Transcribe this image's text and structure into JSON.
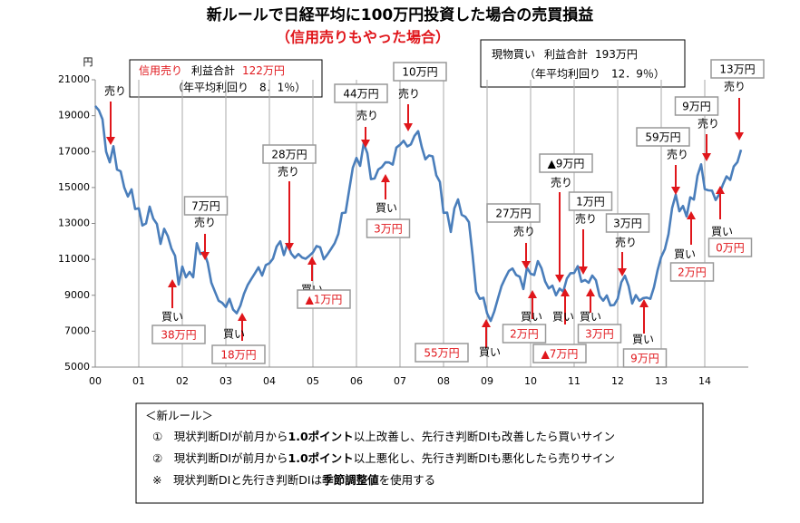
{
  "chart_data": {
    "type": "line",
    "title": "新ルールで日経平均に100万円投資した場合の売買損益",
    "subtitle": "（信用売りもやった場合）",
    "y_unit": "円",
    "x": [
      0,
      1,
      2,
      3,
      4,
      5,
      6,
      7,
      8,
      9,
      10,
      11,
      12,
      13,
      14,
      15,
      16,
      17,
      18,
      19,
      20,
      21,
      22,
      23,
      24,
      25,
      26,
      27,
      28,
      29,
      30,
      31,
      32,
      33,
      34,
      35,
      36,
      37,
      38,
      39,
      40,
      41,
      42,
      43,
      44,
      45,
      46,
      47,
      48,
      49,
      50,
      51,
      52,
      53,
      54,
      55,
      56,
      57,
      58,
      59,
      60,
      61,
      62,
      63,
      64,
      65,
      66,
      67,
      68,
      69,
      70,
      71,
      72,
      73,
      74,
      75,
      76,
      77,
      78,
      79,
      80,
      81,
      82,
      83,
      84,
      85,
      86,
      87,
      88,
      89,
      90,
      91,
      92,
      93,
      94,
      95,
      96,
      97,
      98,
      99,
      100,
      101,
      102,
      103,
      104,
      105,
      106,
      107,
      108,
      109,
      110,
      111,
      112,
      113,
      114,
      115,
      116,
      117,
      118,
      119,
      120,
      121,
      122,
      123,
      124,
      125,
      126,
      127,
      128,
      129,
      130,
      131,
      132,
      133,
      134,
      135,
      136,
      137,
      138,
      139,
      140,
      141,
      142,
      143,
      144,
      145,
      146,
      147,
      148,
      149,
      150,
      151,
      152,
      153,
      154,
      155,
      156,
      157,
      158,
      159,
      160,
      161,
      162,
      163,
      164,
      165,
      166,
      167,
      168,
      169,
      170,
      171,
      172,
      173,
      174,
      175,
      176,
      177,
      178
    ],
    "series": [
      {
        "name": "日経平均",
        "color": "#4a7ebb",
        "values": [
          19540,
          19300,
          18800,
          17000,
          16400,
          17300,
          16000,
          15900,
          15000,
          14500,
          14900,
          13800,
          13843,
          12883,
          12999,
          13934,
          13262,
          12969,
          11860,
          12700,
          12300,
          11600,
          11200,
          9600,
          10600,
          10000,
          10300,
          10000,
          11900,
          11300,
          11400,
          10800,
          9700,
          9200,
          8700,
          8578,
          8339,
          8800,
          8200,
          8000,
          8424,
          9083,
          9563,
          9900,
          10219,
          10559,
          10100,
          10676,
          10783,
          11041,
          11715,
          12000,
          11236,
          11858,
          11325,
          11081,
          11300,
          11100,
          11030,
          11200,
          11387,
          11740,
          11668,
          11008,
          11276,
          11584,
          11899,
          12413,
          13574,
          13606,
          14872,
          16111,
          16649,
          16205,
          17459,
          16906,
          15467,
          15505,
          16000,
          16140,
          16400,
          16399,
          16274,
          17225,
          17383,
          17604,
          17287,
          17400,
          17875,
          18138,
          17248,
          16569,
          16785,
          16737,
          15680,
          15307,
          13592,
          13603,
          12525,
          13849,
          14338,
          13481,
          13376,
          13072,
          11259,
          9200,
          8800,
          8859,
          7994,
          7568,
          8109,
          8828,
          9522,
          9958,
          10356,
          10492,
          10133,
          10034,
          9345,
          10546,
          10198,
          10126,
          10900,
          10500,
          9768,
          9382,
          9537,
          9000,
          9369,
          9202,
          9937,
          10228,
          10237,
          10624,
          9755,
          9849,
          9693,
          10100,
          9833,
          8955,
          8700,
          8988,
          8434,
          8455,
          8802,
          9723,
          10083,
          9520,
          8542,
          9006,
          8695,
          8839,
          8870,
          8800,
          9446,
          10395,
          11138,
          11559,
          12397,
          13860,
          14600,
          13677,
          13968,
          13388,
          14455,
          14327,
          15661,
          16291,
          14914,
          14841,
          14827,
          14304,
          14632,
          15162,
          15620,
          15424,
          16173,
          16413,
          17100
        ]
      }
    ],
    "xlim": [
      0,
      180
    ],
    "xticks": [
      {
        "value": 0,
        "label": "00"
      },
      {
        "value": 12,
        "label": "01"
      },
      {
        "value": 24,
        "label": "02"
      },
      {
        "value": 36,
        "label": "03"
      },
      {
        "value": 48,
        "label": "04"
      },
      {
        "value": 60,
        "label": "05"
      },
      {
        "value": 72,
        "label": "06"
      },
      {
        "value": 84,
        "label": "07"
      },
      {
        "value": 96,
        "label": "08"
      },
      {
        "value": 108,
        "label": "09"
      },
      {
        "value": 120,
        "label": "10"
      },
      {
        "value": 132,
        "label": "11"
      },
      {
        "value": 144,
        "label": "12"
      },
      {
        "value": 156,
        "label": "13"
      },
      {
        "value": 168,
        "label": "14"
      }
    ],
    "ylim": [
      5000,
      21000
    ],
    "yticks": [
      5000,
      7000,
      9000,
      11000,
      13000,
      15000,
      17000,
      19000,
      21000
    ],
    "grid": true,
    "credit_box": {
      "label": "信用売り",
      "total_label": "利益合計",
      "total": "122万円",
      "yield": "（年平均利回り　8．1％）"
    },
    "spot_box": {
      "label": "現物買い",
      "total_label": "利益合計",
      "total": "193万円",
      "yield": "（年平均利回り　12．9％）"
    },
    "annotations": [
      {
        "signal": "売り"
      },
      {
        "signal": "買い",
        "profit": "38万円"
      },
      {
        "signal": "売り",
        "profit": "7万円"
      },
      {
        "signal": "買い",
        "profit": "18万円"
      },
      {
        "signal": "売り",
        "profit": "28万円"
      },
      {
        "signal": "買い",
        "profit": "▲1万円"
      },
      {
        "signal": "売り",
        "profit": "44万円"
      },
      {
        "signal": "買い",
        "profit": "3万円"
      },
      {
        "signal": "売り",
        "profit": "10万円"
      },
      {
        "signal": "買い",
        "profit": "55万円"
      },
      {
        "signal": "売り",
        "profit": "27万円"
      },
      {
        "signal": "買い",
        "profit": "2万円"
      },
      {
        "signal": "売り",
        "profit": "▲9万円"
      },
      {
        "signal": "買い",
        "profit": "▲7万円"
      },
      {
        "signal": "売り",
        "profit": "1万円"
      },
      {
        "signal": "買い",
        "profit": "3万円"
      },
      {
        "signal": "売り",
        "profit": "3万円"
      },
      {
        "signal": "買い",
        "profit": "9万円"
      },
      {
        "signal": "売り",
        "profit": "59万円"
      },
      {
        "signal": "買い",
        "profit": "2万円"
      },
      {
        "signal": "売り",
        "profit": "9万円"
      },
      {
        "signal": "買い",
        "profit": "0万円"
      },
      {
        "signal": "売り",
        "profit": "13万円"
      }
    ],
    "notes": [
      [
        {
          "text": "＜新ルール＞"
        }
      ],
      [
        {
          "text": "①　現状判断DIが前月から"
        },
        {
          "text": "1.0ポイント",
          "bold": true
        },
        {
          "text": "以上改善し、先行き判断DIも改善したら買いサイン"
        }
      ],
      [
        {
          "text": "②　現状判断DIが前月から"
        },
        {
          "text": "1.0ポイント",
          "bold": true
        },
        {
          "text": "以上悪化し、先行き判断DIも悪化したら売りサイン"
        }
      ],
      [
        {
          "text": "※　現状判断DIと先行き判断DIは"
        },
        {
          "text": "季節調整値",
          "bold": true
        },
        {
          "text": "を使用する"
        }
      ]
    ]
  }
}
